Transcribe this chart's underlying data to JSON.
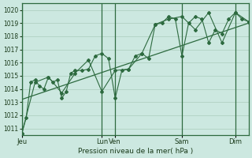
{
  "xlabel": "Pression niveau de la mer( hPa )",
  "bg_color": "#cce8e0",
  "grid_color": "#aaccbb",
  "line_color": "#2d6a3f",
  "ylim": [
    1010.5,
    1020.5
  ],
  "day_labels": [
    "Jeu",
    "Lun",
    "Ven",
    "Sam",
    "Dim"
  ],
  "day_positions": [
    0,
    72,
    84,
    144,
    192
  ],
  "xlim": [
    0,
    204
  ],
  "yticks": [
    1011,
    1012,
    1013,
    1014,
    1015,
    1016,
    1017,
    1018,
    1019,
    1020
  ],
  "trend_x": [
    0,
    204
  ],
  "trend_y": [
    1013.2,
    1019.0
  ],
  "line1_x": [
    0,
    4,
    8,
    12,
    16,
    20,
    24,
    28,
    32,
    36,
    40,
    44,
    48,
    54,
    60,
    66,
    72,
    78,
    84,
    90,
    96,
    102,
    108,
    114,
    120,
    126,
    132,
    138,
    144,
    150,
    156,
    162,
    168,
    174,
    180,
    186,
    192,
    198,
    204
  ],
  "line1_y": [
    1010.6,
    1011.8,
    1014.5,
    1014.7,
    1014.2,
    1014.0,
    1014.9,
    1014.5,
    1014.7,
    1013.3,
    1013.8,
    1015.2,
    1015.4,
    1015.4,
    1015.5,
    1016.5,
    1016.7,
    1016.3,
    1013.3,
    1015.4,
    1015.5,
    1016.5,
    1016.7,
    1016.3,
    1018.9,
    1019.0,
    1019.5,
    1019.3,
    1016.5,
    1019.0,
    1019.5,
    1019.3,
    1017.5,
    1018.5,
    1018.2,
    1019.3,
    1019.8,
    1019.3,
    1019.1
  ],
  "line2_x": [
    0,
    12,
    24,
    36,
    48,
    60,
    72,
    84,
    96,
    108,
    120,
    132,
    144,
    156,
    168,
    180,
    192,
    204
  ],
  "line2_y": [
    1010.6,
    1014.5,
    1014.9,
    1013.7,
    1015.2,
    1016.2,
    1013.8,
    1015.4,
    1015.5,
    1016.7,
    1018.9,
    1019.3,
    1019.5,
    1018.5,
    1019.8,
    1017.5,
    1019.8,
    1019.1
  ]
}
